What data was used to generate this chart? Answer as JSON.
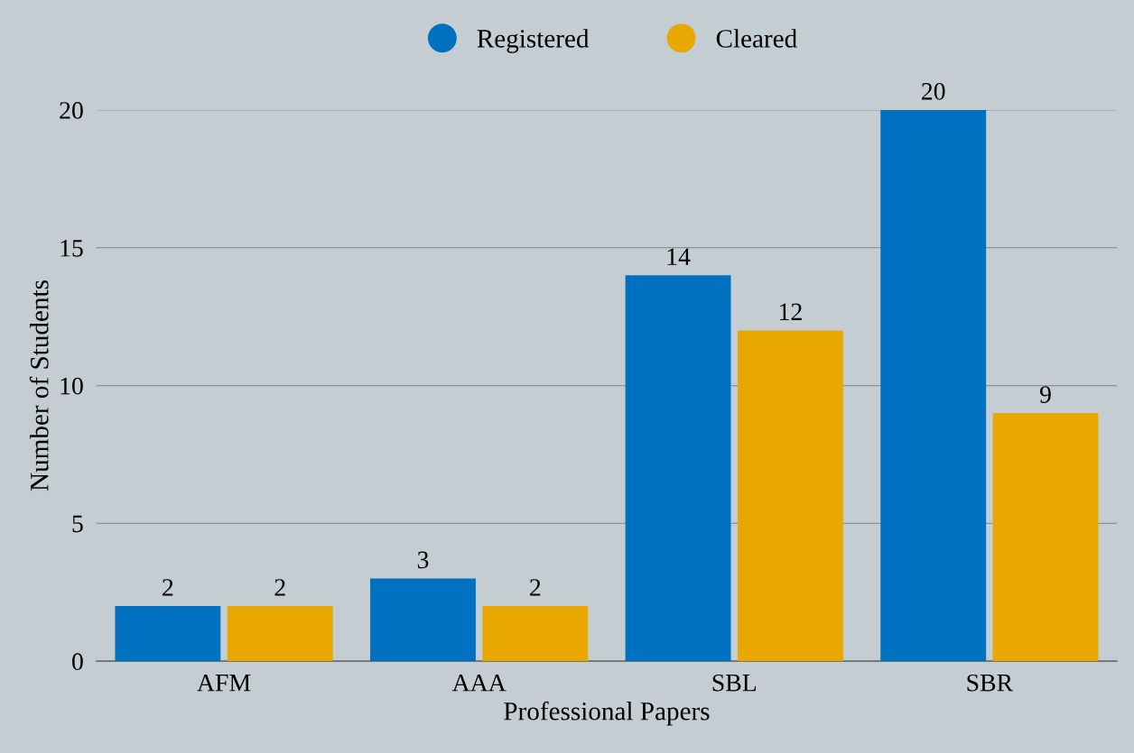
{
  "chart_data": {
    "type": "bar",
    "xlabel": "Professional Papers",
    "ylabel": "Number of Students",
    "categories": [
      "AFM",
      "AAA",
      "SBL",
      "SBR"
    ],
    "series": [
      {
        "name": "Registered",
        "color": "#0070c0",
        "values": [
          2,
          3,
          14,
          20
        ]
      },
      {
        "name": "Cleared",
        "color": "#e8a800",
        "values": [
          2,
          2,
          12,
          9
        ]
      }
    ],
    "ylim": [
      0,
      20
    ],
    "yticks": [
      0,
      5,
      10,
      15,
      20
    ],
    "grid": "y",
    "legend": "top",
    "data_labels": true
  }
}
